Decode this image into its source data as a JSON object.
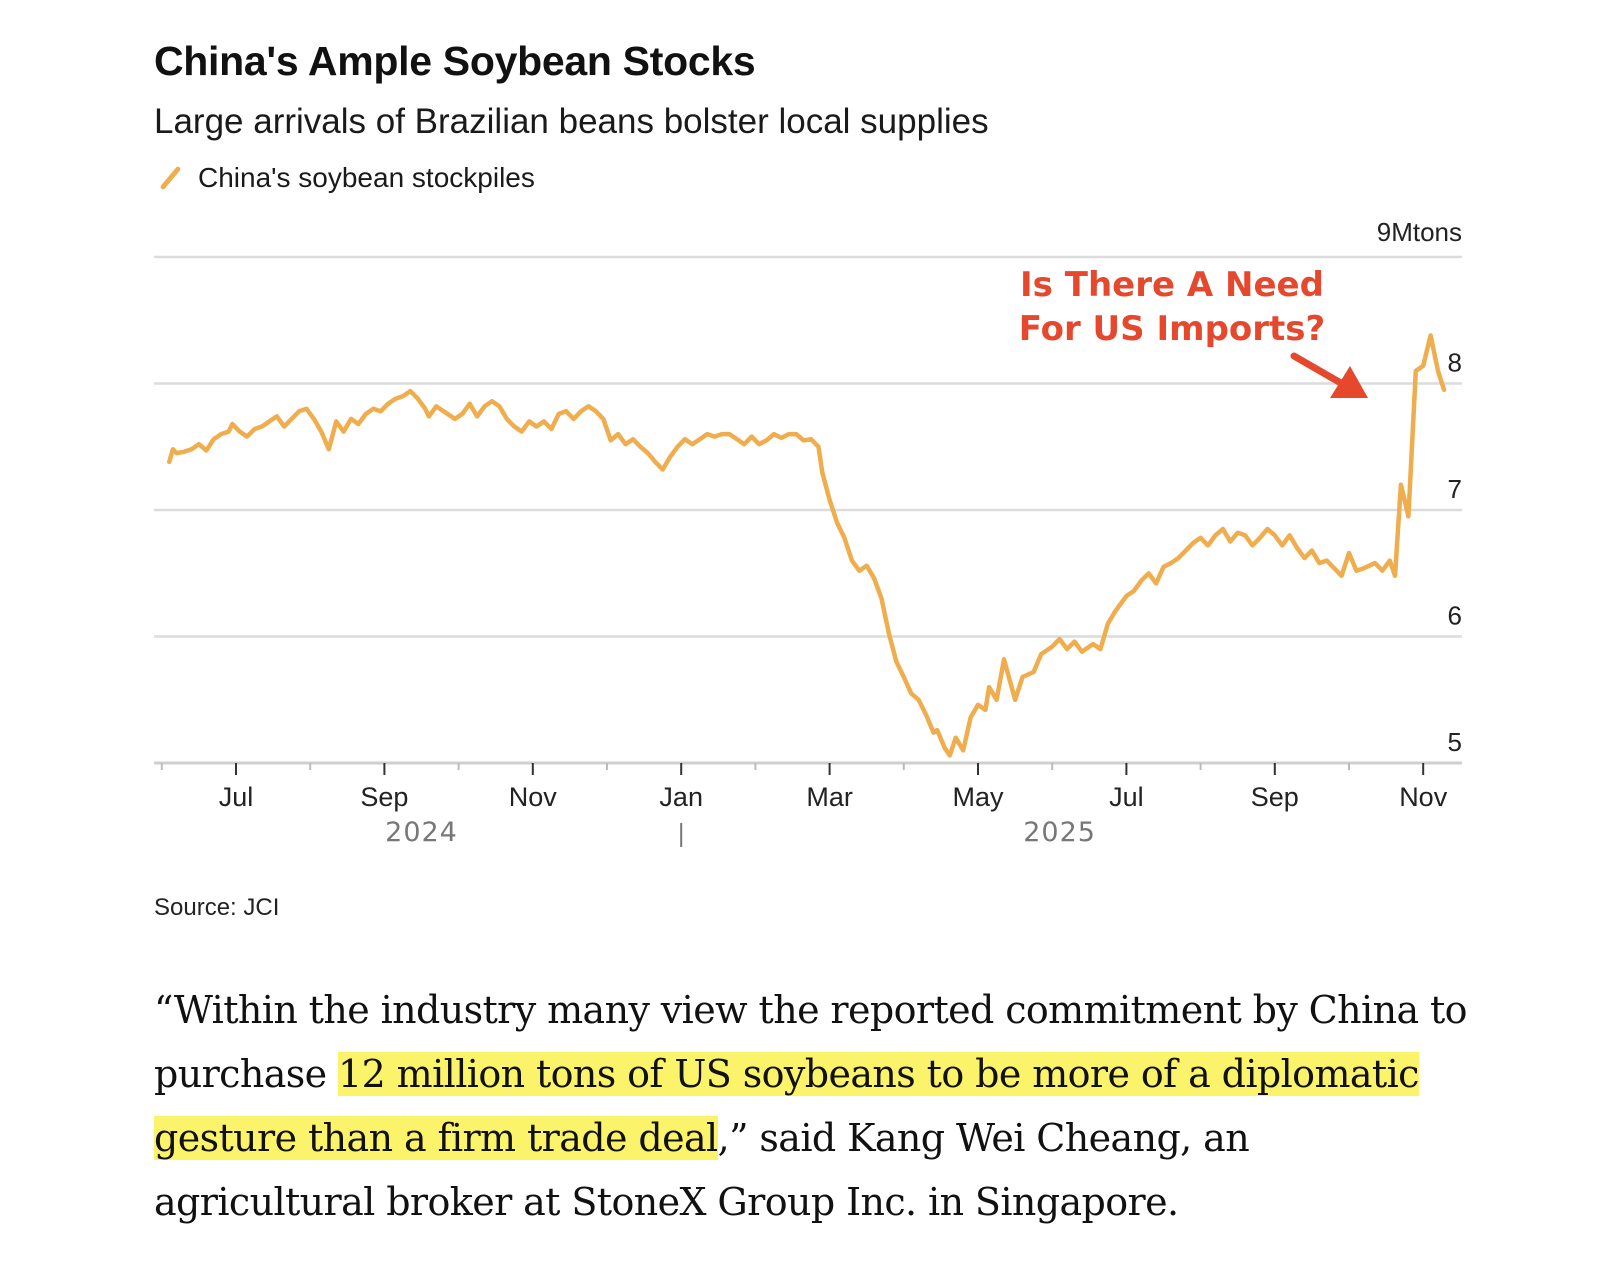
{
  "header": {
    "title": "China's Ample Soybean Stocks",
    "subtitle": "Large arrivals of Brazilian beans bolster local supplies",
    "legend_label": "China's soybean stockpiles"
  },
  "annotation": {
    "line1": "Is There A Need",
    "line2": "For US Imports?",
    "color": "#e5482c"
  },
  "source": "Source: JCI",
  "quote": {
    "part1": "“Within the industry many view the reported commitment by China to purchase ",
    "highlight": "12 million tons of US soybeans to be more of a diplomatic gesture than a firm trade deal",
    "part2": ",” said Kang Wei Cheang, an agricultural broker at StoneX Group Inc. in Singapore.",
    "highlight_color": "#fbf36a"
  },
  "chart_data": {
    "type": "line",
    "title": "China's Ample Soybean Stocks",
    "subtitle": "Large arrivals of Brazilian beans bolster local supplies",
    "xlabel": "",
    "ylabel": "Mtons",
    "y_unit_label": "9Mtons",
    "ylim": [
      5,
      9
    ],
    "yticks": [
      "5",
      "6",
      "7",
      "8"
    ],
    "grid": true,
    "legend": "top-left",
    "x_unit": "months since 2024-07-01",
    "xlim": [
      -1.1,
      16.1
    ],
    "xticks": [
      {
        "label": "Jul",
        "x": 0
      },
      {
        "label": "Sep",
        "x": 2
      },
      {
        "label": "Nov",
        "x": 4
      },
      {
        "label": "Jan",
        "x": 6
      },
      {
        "label": "Mar",
        "x": 8
      },
      {
        "label": "May",
        "x": 10
      },
      {
        "label": "Jul",
        "x": 12
      },
      {
        "label": "Sep",
        "x": 14
      },
      {
        "label": "Nov",
        "x": 16
      }
    ],
    "year_labels": [
      {
        "label": "2024",
        "x": 2.5
      },
      {
        "label": "2025",
        "x": 11.1
      }
    ],
    "series": [
      {
        "name": "China's soybean stockpiles",
        "color": "#f0ad4e",
        "points": [
          [
            -0.9,
            7.38
          ],
          [
            -0.85,
            7.48
          ],
          [
            -0.8,
            7.45
          ],
          [
            -0.7,
            7.46
          ],
          [
            -0.6,
            7.48
          ],
          [
            -0.5,
            7.52
          ],
          [
            -0.4,
            7.47
          ],
          [
            -0.3,
            7.56
          ],
          [
            -0.2,
            7.6
          ],
          [
            -0.1,
            7.62
          ],
          [
            -0.05,
            7.68
          ],
          [
            0.05,
            7.62
          ],
          [
            0.15,
            7.58
          ],
          [
            0.25,
            7.64
          ],
          [
            0.35,
            7.66
          ],
          [
            0.45,
            7.7
          ],
          [
            0.55,
            7.74
          ],
          [
            0.65,
            7.66
          ],
          [
            0.75,
            7.72
          ],
          [
            0.85,
            7.78
          ],
          [
            0.95,
            7.8
          ],
          [
            1.05,
            7.72
          ],
          [
            1.15,
            7.62
          ],
          [
            1.25,
            7.48
          ],
          [
            1.35,
            7.7
          ],
          [
            1.45,
            7.62
          ],
          [
            1.55,
            7.72
          ],
          [
            1.65,
            7.68
          ],
          [
            1.75,
            7.76
          ],
          [
            1.85,
            7.8
          ],
          [
            1.95,
            7.78
          ],
          [
            2.05,
            7.84
          ],
          [
            2.15,
            7.88
          ],
          [
            2.25,
            7.9
          ],
          [
            2.35,
            7.94
          ],
          [
            2.45,
            7.88
          ],
          [
            2.55,
            7.8
          ],
          [
            2.6,
            7.74
          ],
          [
            2.7,
            7.82
          ],
          [
            2.85,
            7.76
          ],
          [
            2.95,
            7.72
          ],
          [
            3.05,
            7.76
          ],
          [
            3.15,
            7.84
          ],
          [
            3.25,
            7.74
          ],
          [
            3.35,
            7.82
          ],
          [
            3.45,
            7.86
          ],
          [
            3.55,
            7.82
          ],
          [
            3.65,
            7.72
          ],
          [
            3.75,
            7.66
          ],
          [
            3.85,
            7.62
          ],
          [
            3.95,
            7.7
          ],
          [
            4.05,
            7.66
          ],
          [
            4.15,
            7.7
          ],
          [
            4.25,
            7.64
          ],
          [
            4.35,
            7.76
          ],
          [
            4.45,
            7.78
          ],
          [
            4.55,
            7.72
          ],
          [
            4.65,
            7.78
          ],
          [
            4.75,
            7.82
          ],
          [
            4.85,
            7.78
          ],
          [
            4.95,
            7.72
          ],
          [
            5.05,
            7.55
          ],
          [
            5.15,
            7.6
          ],
          [
            5.25,
            7.52
          ],
          [
            5.35,
            7.56
          ],
          [
            5.45,
            7.5
          ],
          [
            5.55,
            7.45
          ],
          [
            5.65,
            7.38
          ],
          [
            5.75,
            7.32
          ],
          [
            5.85,
            7.42
          ],
          [
            5.95,
            7.5
          ],
          [
            6.05,
            7.56
          ],
          [
            6.15,
            7.52
          ],
          [
            6.25,
            7.56
          ],
          [
            6.35,
            7.6
          ],
          [
            6.45,
            7.58
          ],
          [
            6.55,
            7.6
          ],
          [
            6.65,
            7.6
          ],
          [
            6.75,
            7.56
          ],
          [
            6.85,
            7.52
          ],
          [
            6.95,
            7.58
          ],
          [
            7.05,
            7.52
          ],
          [
            7.15,
            7.55
          ],
          [
            7.25,
            7.6
          ],
          [
            7.35,
            7.57
          ],
          [
            7.45,
            7.6
          ],
          [
            7.55,
            7.6
          ],
          [
            7.65,
            7.55
          ],
          [
            7.75,
            7.56
          ],
          [
            7.85,
            7.5
          ],
          [
            7.9,
            7.3
          ],
          [
            8.0,
            7.08
          ],
          [
            8.1,
            6.9
          ],
          [
            8.2,
            6.78
          ],
          [
            8.3,
            6.6
          ],
          [
            8.4,
            6.52
          ],
          [
            8.5,
            6.56
          ],
          [
            8.6,
            6.46
          ],
          [
            8.7,
            6.3
          ],
          [
            8.8,
            6.02
          ],
          [
            8.9,
            5.8
          ],
          [
            9.0,
            5.68
          ],
          [
            9.1,
            5.55
          ],
          [
            9.2,
            5.5
          ],
          [
            9.3,
            5.38
          ],
          [
            9.4,
            5.24
          ],
          [
            9.45,
            5.26
          ],
          [
            9.55,
            5.12
          ],
          [
            9.62,
            5.06
          ],
          [
            9.7,
            5.2
          ],
          [
            9.8,
            5.1
          ],
          [
            9.9,
            5.36
          ],
          [
            10.0,
            5.46
          ],
          [
            10.1,
            5.42
          ],
          [
            10.15,
            5.6
          ],
          [
            10.25,
            5.5
          ],
          [
            10.35,
            5.82
          ],
          [
            10.5,
            5.5
          ],
          [
            10.6,
            5.68
          ],
          [
            10.75,
            5.72
          ],
          [
            10.85,
            5.86
          ],
          [
            11.0,
            5.92
          ],
          [
            11.1,
            5.98
          ],
          [
            11.2,
            5.9
          ],
          [
            11.3,
            5.96
          ],
          [
            11.4,
            5.88
          ],
          [
            11.55,
            5.94
          ],
          [
            11.65,
            5.9
          ],
          [
            11.75,
            6.1
          ],
          [
            11.85,
            6.2
          ],
          [
            12.0,
            6.32
          ],
          [
            12.1,
            6.36
          ],
          [
            12.2,
            6.44
          ],
          [
            12.3,
            6.5
          ],
          [
            12.4,
            6.42
          ],
          [
            12.5,
            6.55
          ],
          [
            12.6,
            6.58
          ],
          [
            12.7,
            6.62
          ],
          [
            12.8,
            6.68
          ],
          [
            12.9,
            6.74
          ],
          [
            13.0,
            6.78
          ],
          [
            13.1,
            6.72
          ],
          [
            13.2,
            6.8
          ],
          [
            13.3,
            6.85
          ],
          [
            13.4,
            6.75
          ],
          [
            13.5,
            6.82
          ],
          [
            13.6,
            6.8
          ],
          [
            13.7,
            6.72
          ],
          [
            13.8,
            6.78
          ],
          [
            13.9,
            6.85
          ],
          [
            14.0,
            6.8
          ],
          [
            14.1,
            6.72
          ],
          [
            14.2,
            6.8
          ],
          [
            14.3,
            6.7
          ],
          [
            14.4,
            6.62
          ],
          [
            14.5,
            6.68
          ],
          [
            14.6,
            6.58
          ],
          [
            14.7,
            6.6
          ],
          [
            14.8,
            6.54
          ],
          [
            14.9,
            6.48
          ],
          [
            15.0,
            6.66
          ],
          [
            15.1,
            6.52
          ],
          [
            15.2,
            6.54
          ],
          [
            15.35,
            6.58
          ],
          [
            15.45,
            6.52
          ],
          [
            15.55,
            6.6
          ],
          [
            15.62,
            6.48
          ],
          [
            15.7,
            7.2
          ],
          [
            15.8,
            6.95
          ],
          [
            15.9,
            8.1
          ],
          [
            16.0,
            8.14
          ],
          [
            16.1,
            8.38
          ],
          [
            16.2,
            8.1
          ],
          [
            16.28,
            7.95
          ]
        ]
      }
    ]
  }
}
